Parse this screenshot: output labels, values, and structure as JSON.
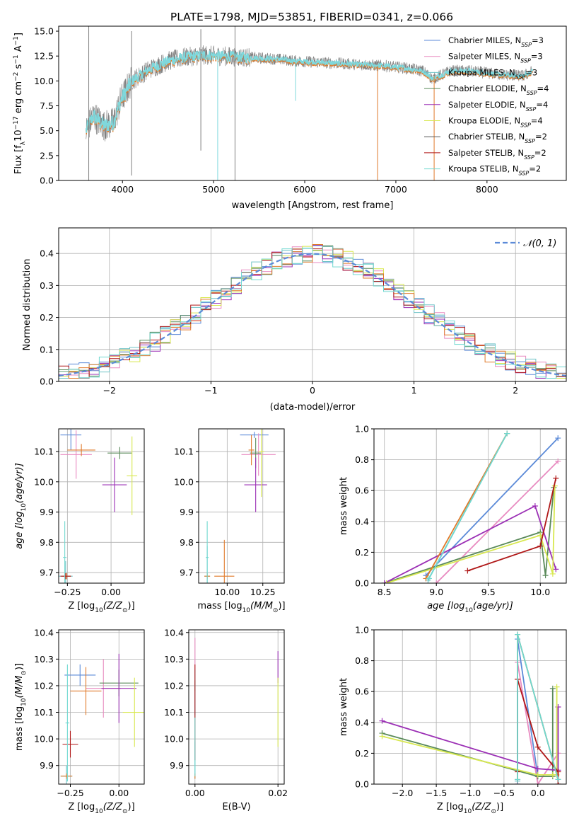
{
  "figure_title": "PLATE=1798, MJD=53851, FIBERID=0341, z=0.066",
  "models": [
    {
      "name": "Chabrier MILES",
      "nssp": "3",
      "color": "#5b8ad8"
    },
    {
      "name": "Salpeter MILES",
      "nssp": "3",
      "color": "#e88ac0"
    },
    {
      "name": "Kroupa MILES",
      "nssp": "3",
      "color": "#70c4c8"
    },
    {
      "name": "Chabrier ELODIE",
      "nssp": "4",
      "color": "#5a8a5a"
    },
    {
      "name": "Salpeter ELODIE",
      "nssp": "4",
      "color": "#9b2fb5"
    },
    {
      "name": "Kroupa ELODIE",
      "nssp": "4",
      "color": "#d8e850"
    },
    {
      "name": "Chabrier STELIB",
      "nssp": "2",
      "color": "#555555"
    },
    {
      "name": "Salpeter STELIB",
      "nssp": "2",
      "color": "#b01818"
    },
    {
      "name": "Kroupa STELIB",
      "nssp": "2",
      "color": "#70d8d0"
    }
  ],
  "chart_data": [
    {
      "id": "spectrum",
      "type": "line",
      "title": "PLATE=1798, MJD=53851, FIBERID=0341, z=0.066",
      "xlabel": "wavelength [Angstrom, rest frame]",
      "ylabel_parts": [
        "Flux [f",
        "λ",
        "10",
        "−17",
        " erg cm",
        "−2",
        " s",
        "−1",
        " A",
        "−1",
        "]"
      ],
      "xlim": [
        3300,
        8870
      ],
      "ylim": [
        0,
        15.5
      ],
      "xticks": [
        "4000",
        "5000",
        "6000",
        "7000",
        "8000"
      ],
      "yticks": [
        "0.0",
        "2.5",
        "5.0",
        "7.5",
        "10.0",
        "12.5",
        "15.0"
      ],
      "grid": false,
      "legend_position": "top-right",
      "continuum_anchors": {
        "x": [
          3600,
          3680,
          3800,
          3900,
          3980,
          4100,
          4300,
          4500,
          4700,
          4900,
          5100,
          5300,
          5500,
          5700,
          5900,
          6100,
          6300,
          6500,
          6700,
          6900,
          7100,
          7300,
          7400,
          7500,
          7600,
          7800,
          8000,
          8200,
          8400,
          8500
        ],
        "y": [
          5.0,
          6.5,
          5.5,
          5.8,
          8.0,
          10.0,
          11.2,
          12.0,
          12.4,
          12.6,
          12.5,
          12.4,
          12.3,
          12.2,
          12.0,
          11.9,
          11.8,
          11.7,
          11.6,
          11.5,
          11.3,
          11.0,
          10.2,
          10.6,
          11.0,
          11.0,
          10.8,
          10.6,
          10.5,
          11.0
        ]
      }
    },
    {
      "id": "residuals",
      "type": "step",
      "xlabel": "(data-model)/error",
      "ylabel": "Normed distribution",
      "xlim": [
        -2.5,
        2.5
      ],
      "ylim": [
        0,
        0.48
      ],
      "xticks": [
        "−2",
        "−1",
        "0",
        "1",
        "2"
      ],
      "yticks": [
        "0.0",
        "0.1",
        "0.2",
        "0.3",
        "0.4"
      ],
      "grid": true,
      "legend_position": "top-right",
      "reference_curve": "𝒩(0, 1)"
    },
    {
      "id": "age-vs-Z",
      "type": "errorbar",
      "xlabel_parts": [
        "Z [log",
        "10",
        "(Z/Z",
        "⊙",
        ")]"
      ],
      "ylabel_parts": [
        "age  [log",
        "10",
        "(age/yr)]"
      ],
      "xlim": [
        -0.3,
        0.19
      ],
      "ylim": [
        9.665,
        10.175
      ],
      "xticks": [
        "−0.25",
        "0.00"
      ],
      "xtick_values": [
        -0.25,
        0.0
      ],
      "yticks": [
        "9.7",
        "9.8",
        "9.9",
        "10.0",
        "10.1"
      ],
      "ytick_values": [
        9.7,
        9.8,
        9.9,
        10.0,
        10.1
      ],
      "points": [
        {
          "model": 0,
          "x": -0.23,
          "y": 10.155,
          "xerr": 0.06,
          "yerr": 0.05
        },
        {
          "model": 1,
          "x": -0.2,
          "y": 10.09,
          "xerr": 0.09,
          "yerr": 0.08
        },
        {
          "model": 2,
          "x": -0.26,
          "y": 9.688,
          "xerr": 0.04,
          "yerr": 0.05
        },
        {
          "model": 3,
          "x": 0.05,
          "y": 10.095,
          "xerr": 0.07,
          "yerr": 0.02
        },
        {
          "model": 4,
          "x": 0.02,
          "y": 9.99,
          "xerr": 0.07,
          "yerr": 0.09
        },
        {
          "model": 5,
          "x": 0.12,
          "y": 10.02,
          "xerr": 0.03,
          "yerr": 0.13
        },
        {
          "model": 6,
          "x": -0.255,
          "y": 9.688,
          "xerr": 0.025,
          "yerr": 0.01
        },
        {
          "model": 7,
          "x": -0.26,
          "y": 9.688,
          "xerr": 0.03,
          "yerr": 0.01
        },
        {
          "model": 8,
          "x": -0.265,
          "y": 9.75,
          "xerr": 0.01,
          "yerr": 0.12
        },
        {
          "model": 1,
          "x": -0.17,
          "y": 10.105,
          "xerr": 0.08,
          "yerr": 0.02
        }
      ]
    },
    {
      "id": "age-vs-mass",
      "type": "errorbar",
      "xlabel_parts": [
        "mass [log",
        "10",
        "(M/M",
        "⊙",
        ")]"
      ],
      "ylabel_parts": [
        "",
        "",
        ""
      ],
      "xlim": [
        9.8,
        10.4
      ],
      "ylim": [
        9.665,
        10.175
      ],
      "xticks": [
        "10.00",
        "10.25"
      ],
      "xtick_values": [
        10.0,
        10.25
      ],
      "yticks": [
        "9.7",
        "9.8",
        "9.9",
        "10.0",
        "10.1"
      ],
      "ytick_values": [
        9.7,
        9.8,
        9.9,
        10.0,
        10.1
      ],
      "points": [
        {
          "model": 0,
          "x": 10.19,
          "y": 10.155,
          "xerr": 0.1,
          "yerr": 0.01
        },
        {
          "model": 1,
          "x": 10.22,
          "y": 10.09,
          "xerr": 0.12,
          "yerr": 0.07
        },
        {
          "model": 2,
          "x": 9.86,
          "y": 9.688,
          "xerr": 0.02,
          "yerr": 0.1
        },
        {
          "model": 3,
          "x": 10.2,
          "y": 10.095,
          "xerr": 0.04,
          "yerr": 0.05
        },
        {
          "model": 4,
          "x": 10.2,
          "y": 9.99,
          "xerr": 0.08,
          "yerr": 0.09
        },
        {
          "model": 5,
          "x": 10.24,
          "y": 10.1,
          "xerr": 0.02,
          "yerr": 0.15
        },
        {
          "model": 6,
          "x": 9.86,
          "y": 9.688,
          "xerr": 0.02,
          "yerr": 0.01
        },
        {
          "model": 7,
          "x": 9.98,
          "y": 9.688,
          "xerr": 0.07,
          "yerr": 0.12
        },
        {
          "model": 8,
          "x": 9.86,
          "y": 9.75,
          "xerr": 0.01,
          "yerr": 0.12
        },
        {
          "model": 7,
          "x": 10.17,
          "y": 10.105,
          "xerr": 0.02,
          "yerr": 0.05
        }
      ]
    },
    {
      "id": "weight-vs-age",
      "type": "line",
      "xlabel_parts": [
        "age  [log",
        "10",
        "(age/yr)]"
      ],
      "ylabel": "mass weight",
      "xlim": [
        8.4,
        10.25
      ],
      "ylim": [
        0,
        1.0
      ],
      "xticks": [
        "8.5",
        "9.0",
        "9.5",
        "10.0"
      ],
      "xtick_values": [
        8.5,
        9.0,
        9.5,
        10.0
      ],
      "yticks": [
        "0.0",
        "0.2",
        "0.4",
        "0.6",
        "0.8",
        "1.0"
      ],
      "ytick_values": [
        0,
        0.2,
        0.4,
        0.6,
        0.8,
        1.0
      ],
      "grid": true,
      "series": [
        {
          "model": 0,
          "x": [
            8.9,
            10.17
          ],
          "y": [
            0.05,
            0.94
          ]
        },
        {
          "model": 1,
          "x": [
            9.0,
            10.17
          ],
          "y": [
            0.0,
            0.79
          ]
        },
        {
          "model": 2,
          "x": [
            8.92,
            9.68
          ],
          "y": [
            0.02,
            0.97
          ]
        },
        {
          "model": 3,
          "x": [
            8.5,
            10.0,
            10.05,
            10.13
          ],
          "y": [
            0.0,
            0.33,
            0.05,
            0.62
          ]
        },
        {
          "model": 4,
          "x": [
            8.5,
            9.95,
            10.15
          ],
          "y": [
            0.0,
            0.5,
            0.09
          ]
        },
        {
          "model": 5,
          "x": [
            8.52,
            10.0,
            10.12,
            10.14
          ],
          "y": [
            0.0,
            0.31,
            0.06,
            0.63
          ]
        },
        {
          "model": 6,
          "x": [
            8.9,
            9.68
          ],
          "y": [
            0.03,
            0.97
          ]
        },
        {
          "model": 7,
          "x": [
            9.3,
            10.0,
            10.15
          ],
          "y": [
            0.08,
            0.24,
            0.68
          ]
        },
        {
          "model": 8,
          "x": [
            8.93,
            9.68
          ],
          "y": [
            0.03,
            0.97
          ]
        }
      ]
    },
    {
      "id": "mass-vs-Z",
      "type": "errorbar",
      "xlabel_parts": [
        "Z [log",
        "10",
        "(Z/Z",
        "⊙",
        ")]"
      ],
      "ylabel_parts": [
        "mass [log",
        "10",
        "(M/M",
        "⊙",
        ")]"
      ],
      "xlim": [
        -0.31,
        0.13
      ],
      "ylim": [
        9.83,
        10.41
      ],
      "xticks": [
        "−0.25",
        "0.00"
      ],
      "xtick_values": [
        -0.25,
        0.0
      ],
      "yticks": [
        "9.9",
        "10.0",
        "10.1",
        "10.2",
        "10.3",
        "10.4"
      ],
      "ytick_values": [
        9.9,
        10.0,
        10.1,
        10.2,
        10.3,
        10.4
      ],
      "points": [
        {
          "model": 0,
          "x": -0.2,
          "y": 10.24,
          "xerr": 0.08,
          "yerr": 0.04
        },
        {
          "model": 1,
          "x": -0.08,
          "y": 10.19,
          "xerr": 0.09,
          "yerr": 0.11
        },
        {
          "model": 2,
          "x": -0.27,
          "y": 9.86,
          "xerr": 0.03,
          "yerr": 0.04
        },
        {
          "model": 3,
          "x": 0.0,
          "y": 10.21,
          "xerr": 0.1,
          "yerr": 0.05
        },
        {
          "model": 4,
          "x": 0.0,
          "y": 10.19,
          "xerr": 0.09,
          "yerr": 0.13
        },
        {
          "model": 5,
          "x": 0.08,
          "y": 10.1,
          "xerr": 0.06,
          "yerr": 0.13
        },
        {
          "model": 6,
          "x": -0.27,
          "y": 9.86,
          "xerr": 0.03,
          "yerr": 0.01
        },
        {
          "model": 7,
          "x": -0.25,
          "y": 9.98,
          "xerr": 0.04,
          "yerr": 0.05
        },
        {
          "model": 8,
          "x": -0.265,
          "y": 10.06,
          "xerr": 0.01,
          "yerr": 0.22
        },
        {
          "model": 7,
          "x": -0.17,
          "y": 10.18,
          "xerr": 0.08,
          "yerr": 0.09
        }
      ]
    },
    {
      "id": "mass-vs-EBV",
      "type": "errorbar",
      "xlabel": "E(B-V)",
      "ylabel_parts": [
        "",
        "",
        ""
      ],
      "xlim": [
        -0.0015,
        0.0215
      ],
      "ylim": [
        9.83,
        10.41
      ],
      "xticks": [
        "0.00",
        "0.02"
      ],
      "xtick_values": [
        0.0,
        0.02
      ],
      "yticks": [
        "9.9",
        "10.0",
        "10.1",
        "10.2",
        "10.3",
        "10.4"
      ],
      "ytick_values": [
        9.9,
        10.0,
        10.1,
        10.2,
        10.3,
        10.4
      ],
      "points": [
        {
          "model": 0,
          "x": 0.0,
          "y": 10.15,
          "xerr": 0,
          "yerr": 0.06
        },
        {
          "model": 1,
          "x": 0.0,
          "y": 10.25,
          "xerr": 0,
          "yerr": 0.13
        },
        {
          "model": 2,
          "x": 0.0,
          "y": 9.92,
          "xerr": 0,
          "yerr": 0.07
        },
        {
          "model": 3,
          "x": 0.0,
          "y": 10.2,
          "xerr": 0,
          "yerr": 0.02
        },
        {
          "model": 4,
          "x": 0.02,
          "y": 10.27,
          "xerr": 0,
          "yerr": 0.06
        },
        {
          "model": 5,
          "x": 0.02,
          "y": 10.1,
          "xerr": 0,
          "yerr": 0.13
        },
        {
          "model": 6,
          "x": 0.0,
          "y": 9.86,
          "xerr": 0,
          "yerr": 0.01
        },
        {
          "model": 7,
          "x": 0.0,
          "y": 10.0,
          "xerr": 0,
          "yerr": 0.08
        },
        {
          "model": 8,
          "x": 0.0,
          "y": 10.06,
          "xerr": 0,
          "yerr": 0.2
        },
        {
          "model": 7,
          "x": 0.0,
          "y": 10.18,
          "xerr": 0,
          "yerr": 0.1
        }
      ]
    },
    {
      "id": "weight-vs-Z",
      "type": "line",
      "xlabel_parts": [
        "Z [log",
        "10",
        "(Z/Z",
        "⊙",
        ")]"
      ],
      "ylabel": "mass weight",
      "xlim": [
        -2.42,
        0.42
      ],
      "ylim": [
        0,
        1.0
      ],
      "xticks": [
        "−2.0",
        "−1.5",
        "−1.0",
        "−0.5",
        "0.0"
      ],
      "xtick_values": [
        -2.0,
        -1.5,
        -1.0,
        -0.5,
        0.0
      ],
      "yticks": [
        "0.0",
        "0.2",
        "0.4",
        "0.6",
        "0.8",
        "1.0"
      ],
      "ytick_values": [
        0,
        0.2,
        0.4,
        0.6,
        0.8,
        1.0
      ],
      "grid": true,
      "series": [
        {
          "model": 0,
          "x": [
            -0.3,
            -0.3,
            0.0,
            0.0
          ],
          "y": [
            0.0,
            0.94,
            0.05,
            0.06
          ]
        },
        {
          "model": 1,
          "x": [
            -0.3,
            -0.3,
            0.0,
            0.3
          ],
          "y": [
            0.0,
            0.79,
            0.0,
            0.2
          ]
        },
        {
          "model": 2,
          "x": [
            -0.3,
            -0.3,
            0.3
          ],
          "y": [
            0.02,
            0.97,
            0.03
          ]
        },
        {
          "model": 3,
          "x": [
            -2.3,
            0.0,
            0.22,
            0.22
          ],
          "y": [
            0.33,
            0.05,
            0.05,
            0.62
          ]
        },
        {
          "model": 4,
          "x": [
            -2.3,
            0.0,
            0.3,
            0.3
          ],
          "y": [
            0.41,
            0.1,
            0.09,
            0.5
          ]
        },
        {
          "model": 5,
          "x": [
            -2.3,
            0.0,
            0.22,
            0.28,
            0.28
          ],
          "y": [
            0.31,
            0.06,
            0.06,
            0.06,
            0.63
          ]
        },
        {
          "model": 6,
          "x": [
            -0.3,
            -0.3,
            0.3
          ],
          "y": [
            0.03,
            0.97,
            0.03
          ]
        },
        {
          "model": 7,
          "x": [
            -0.3,
            -0.3,
            0.0,
            0.3,
            0.3
          ],
          "y": [
            0.08,
            0.68,
            0.24,
            0.08,
            0.0
          ]
        },
        {
          "model": 8,
          "x": [
            -0.3,
            -0.3,
            0.3
          ],
          "y": [
            0.03,
            0.97,
            0.03
          ]
        }
      ]
    }
  ]
}
